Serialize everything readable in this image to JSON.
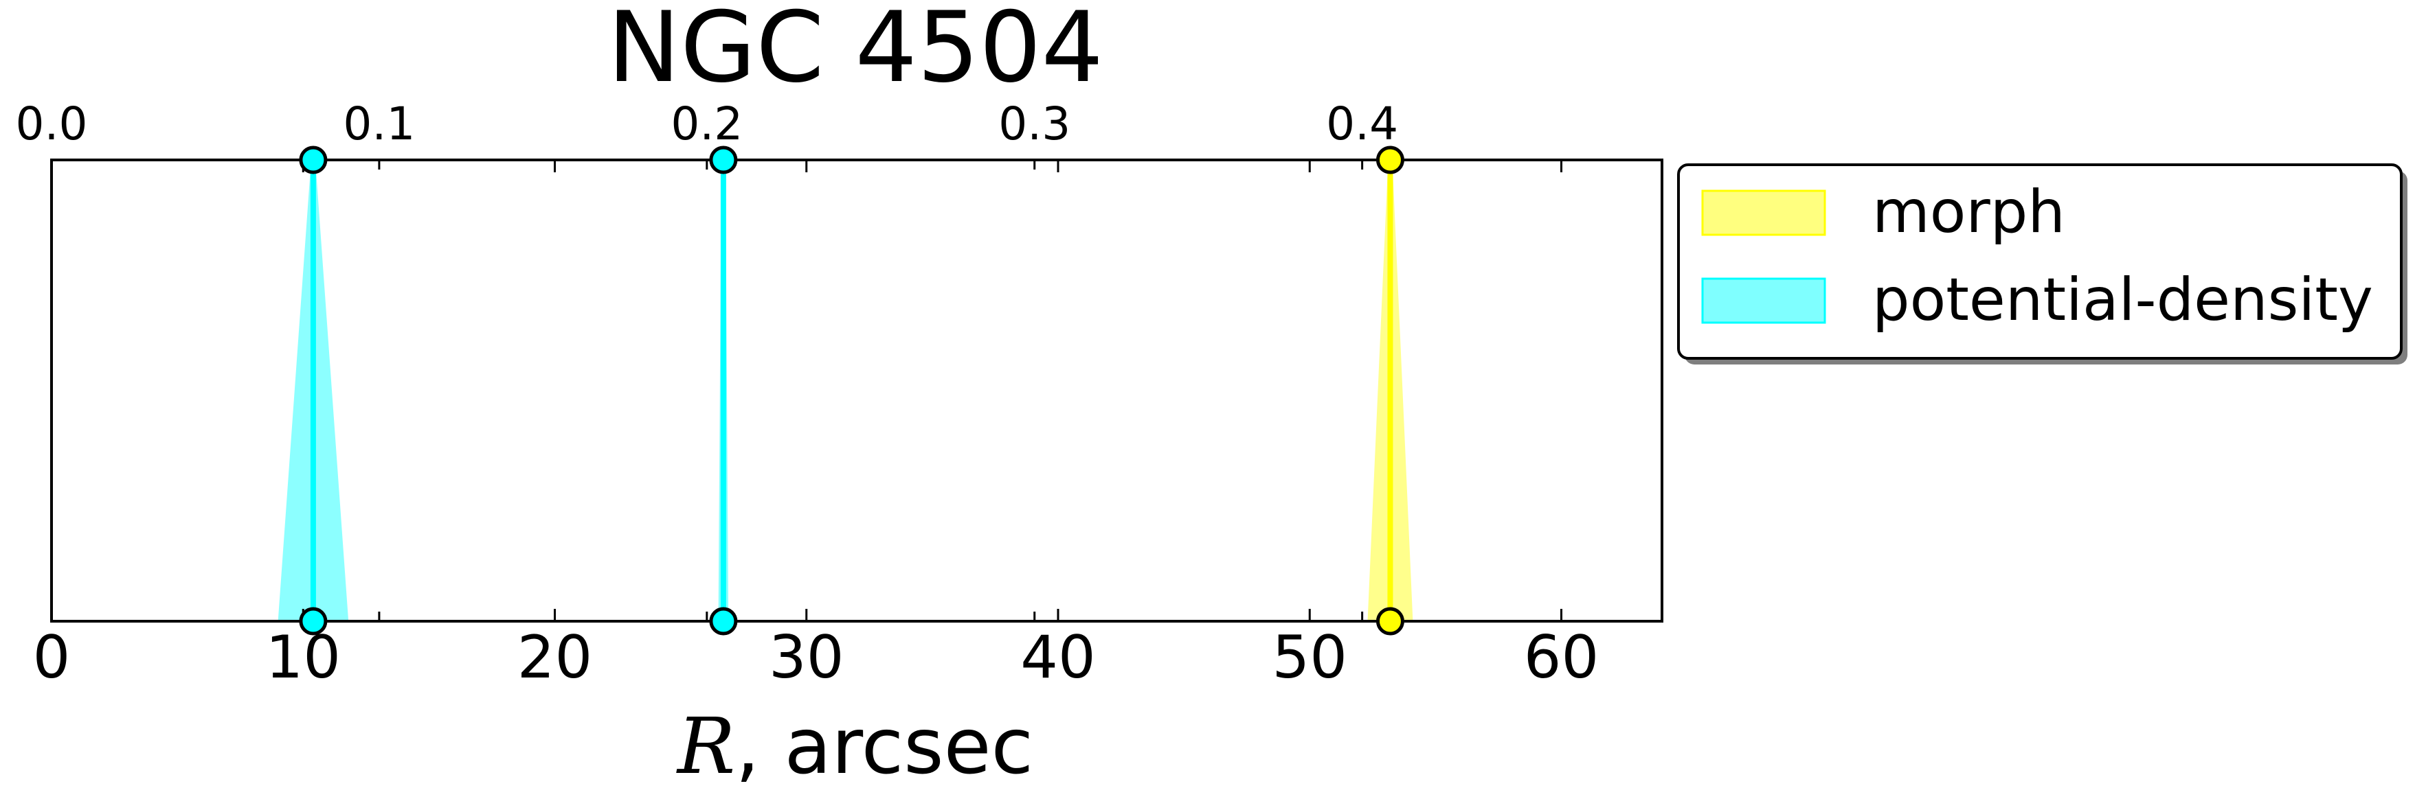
{
  "chart_data": {
    "type": "line",
    "title": "NGC 4504",
    "xlabel_symbol": "R",
    "xlabel_unit": ", arcsec",
    "xlim": [
      0,
      64
    ],
    "xticks": [
      0,
      10,
      20,
      30,
      40,
      50,
      60
    ],
    "xtick_labels": [
      "0",
      "10",
      "20",
      "30",
      "40",
      "50",
      "60"
    ],
    "secondary_xlim": [
      0,
      0.4915
    ],
    "secondary_xticks": [
      0.0,
      0.1,
      0.2,
      0.3,
      0.4
    ],
    "secondary_xtick_labels": [
      "0.0",
      "0.1",
      "0.2",
      "0.3",
      "0.4"
    ],
    "grid": false,
    "legend_position": "outside-right-top",
    "series": [
      {
        "name": "morph",
        "color": "#ffff00",
        "markers": [
          {
            "x": 53.2
          }
        ],
        "bands": [
          {
            "x": 53.2,
            "low": 52.3,
            "high": 54.1
          }
        ]
      },
      {
        "name": "potential-density",
        "color": "#00ffff",
        "markers": [
          {
            "x": 10.4
          },
          {
            "x": 26.7
          }
        ],
        "bands": [
          {
            "x": 10.4,
            "low": 9.0,
            "high": 11.8
          },
          {
            "x": 26.7,
            "low": 26.5,
            "high": 26.9
          }
        ]
      }
    ]
  }
}
